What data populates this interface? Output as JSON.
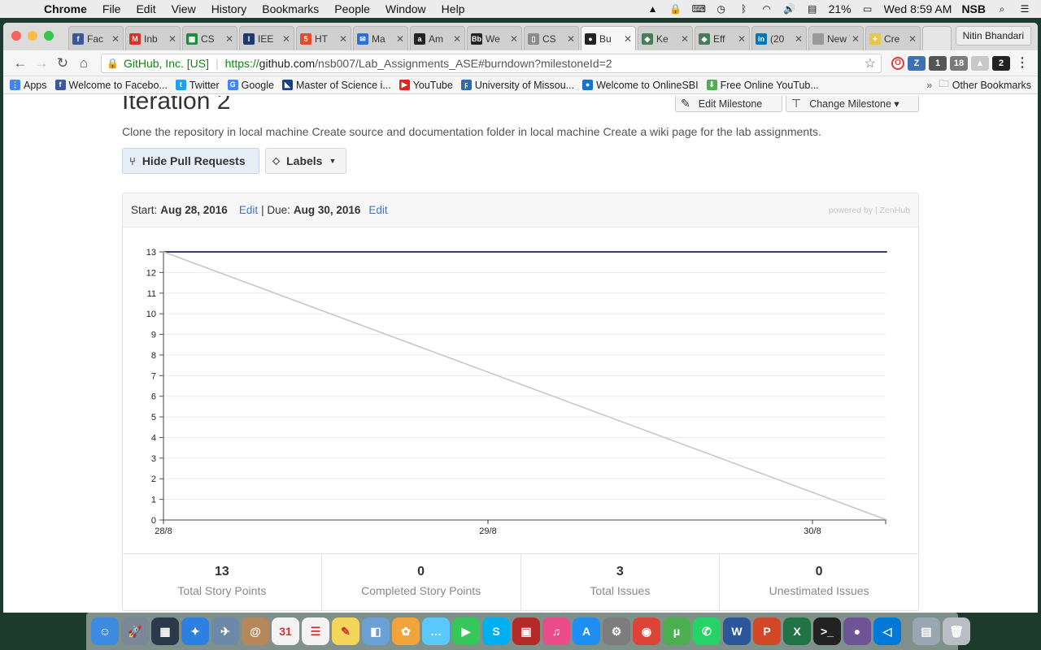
{
  "menubar": {
    "app_name": "Chrome",
    "items": [
      "File",
      "Edit",
      "View",
      "History",
      "Bookmarks",
      "People",
      "Window",
      "Help"
    ],
    "battery": "21%",
    "clock": "Wed 8:59 AM",
    "user": "NSB"
  },
  "browser": {
    "tabs": [
      {
        "label": "Fac",
        "icon": "facebook-icon",
        "color": "#3b5998",
        "glyph": "f"
      },
      {
        "label": "Inb",
        "icon": "gmail-icon",
        "color": "#d93025",
        "glyph": "M"
      },
      {
        "label": "CS",
        "icon": "sheets-icon",
        "color": "#1e8e3e",
        "glyph": "▦"
      },
      {
        "label": "IEE",
        "icon": "ieee-icon",
        "color": "#1f3b6e",
        "glyph": "I"
      },
      {
        "label": "HT",
        "icon": "html5-icon",
        "color": "#e34c26",
        "glyph": "5"
      },
      {
        "label": "Ma",
        "icon": "mail-icon",
        "color": "#2a6fdb",
        "glyph": "✉"
      },
      {
        "label": "Am",
        "icon": "amazon-icon",
        "color": "#222222",
        "glyph": "a"
      },
      {
        "label": "We",
        "icon": "blackboard-icon",
        "color": "#222222",
        "glyph": "Bb"
      },
      {
        "label": "CS",
        "icon": "document-icon",
        "color": "#8a8a8a",
        "glyph": "▯"
      },
      {
        "label": "Bu",
        "icon": "github-icon",
        "color": "#222222",
        "glyph": "●"
      },
      {
        "label": "Ke",
        "icon": "compass-icon",
        "color": "#4a7b5b",
        "glyph": "◈"
      },
      {
        "label": "Eff",
        "icon": "compass-icon",
        "color": "#4a7b5b",
        "glyph": "◈"
      },
      {
        "label": "(20",
        "icon": "linkedin-icon",
        "color": "#0077b5",
        "glyph": "in"
      },
      {
        "label": "New T",
        "icon": "newtab-icon",
        "color": "#9a9a9a",
        "glyph": ""
      },
      {
        "label": "Cre",
        "icon": "lightbulb-icon",
        "color": "#e8c64a",
        "glyph": "✦"
      }
    ],
    "active_tab_index": 9,
    "profile_name": "Nitin Bhandari",
    "security_label": "GitHub, Inc. [US]",
    "url_scheme": "https://",
    "url_host": "github.com",
    "url_path": "/nsb007/Lab_Assignments_ASE#burndown?milestoneId=2",
    "bookmarks": [
      {
        "label": "Apps",
        "icon": "apps-grid-icon",
        "color": "#4285f4",
        "glyph": "⋮"
      },
      {
        "label": "Welcome to Facebo...",
        "icon": "facebook-icon",
        "color": "#3b5998",
        "glyph": "f"
      },
      {
        "label": "Twitter",
        "icon": "twitter-icon",
        "color": "#1da1f2",
        "glyph": "t"
      },
      {
        "label": "Google",
        "icon": "google-icon",
        "color": "#4285f4",
        "glyph": "G"
      },
      {
        "label": "Master of Science i...",
        "icon": "flag-icon",
        "color": "#1a3d8f",
        "glyph": "◣"
      },
      {
        "label": "YouTube",
        "icon": "youtube-icon",
        "color": "#e62117",
        "glyph": "▶"
      },
      {
        "label": "University of Missou...",
        "icon": "university-icon",
        "color": "#2b6cb0",
        "glyph": "ϝ"
      },
      {
        "label": "Welcome to OnlineSBI",
        "icon": "sbi-icon",
        "color": "#1a73c8",
        "glyph": "●"
      },
      {
        "label": "Free Online YouTub...",
        "icon": "download-arrow-icon",
        "color": "#4caf50",
        "glyph": "⬇"
      }
    ],
    "other_bookmarks": "Other Bookmarks"
  },
  "milestone": {
    "title": "Iteration 2",
    "edit_label": "Edit Milestone",
    "change_label": "Change Milestone ▾",
    "description": "Clone the repository in local machine Create source and documentation folder in local machine Create a wiki page for the lab assignments.",
    "hide_pr_label": "Hide Pull Requests",
    "labels_label": "Labels"
  },
  "burndown": {
    "start_prefix": "Start:",
    "start_date": "Aug 28, 2016",
    "edit_link": "Edit",
    "due_prefix": "| Due:",
    "due_date": "Aug 30, 2016",
    "powered_by": "powered by | ZenHub",
    "stats": [
      {
        "value": "13",
        "label": "Total Story Points"
      },
      {
        "value": "0",
        "label": "Completed Story Points"
      },
      {
        "value": "3",
        "label": "Total Issues"
      },
      {
        "value": "0",
        "label": "Unestimated Issues"
      }
    ]
  },
  "chart_data": {
    "type": "line",
    "title": "",
    "xlabel": "",
    "ylabel": "",
    "x_ticks": [
      "28/8",
      "29/8",
      "30/8"
    ],
    "y_ticks": [
      0,
      1,
      2,
      3,
      4,
      5,
      6,
      7,
      8,
      9,
      10,
      11,
      12,
      13
    ],
    "ylim": [
      0,
      13
    ],
    "xlim": [
      "28/8",
      "31/8 (end of 30/8)"
    ],
    "grid": true,
    "series": [
      {
        "values": [
          [
            0,
            13
          ],
          [
            2.23,
            13
          ]
        ],
        "color": "#34406b"
      },
      {
        "values": [
          [
            0,
            13
          ],
          [
            2.23,
            0
          ]
        ],
        "color": "#c8c8c8"
      }
    ],
    "x_units": "days since 28/8"
  },
  "dock": {
    "apps": [
      {
        "icon": "finder-icon",
        "color": "#3d8be0",
        "glyph": "☺"
      },
      {
        "icon": "launchpad-icon",
        "color": "#7a8797",
        "glyph": "🚀"
      },
      {
        "icon": "mission-control-icon",
        "color": "#2b3a4a",
        "glyph": "▦"
      },
      {
        "icon": "safari-icon",
        "color": "#2d7fe0",
        "glyph": "✦"
      },
      {
        "icon": "image-capture-icon",
        "color": "#6c8aa8",
        "glyph": "✈"
      },
      {
        "icon": "contacts-icon",
        "color": "#b5875a",
        "glyph": "@"
      },
      {
        "icon": "calendar-icon",
        "color": "#f3f3f3",
        "glyph": "31"
      },
      {
        "icon": "reminders-icon",
        "color": "#f3f3f3",
        "glyph": "☰"
      },
      {
        "icon": "notes-icon",
        "color": "#f4d55c",
        "glyph": "✎"
      },
      {
        "icon": "preview-icon",
        "color": "#6aa0d4",
        "glyph": "◧"
      },
      {
        "icon": "photos-icon",
        "color": "#f1a33c",
        "glyph": "✿"
      },
      {
        "icon": "messages-icon",
        "color": "#5ac8fa",
        "glyph": "…"
      },
      {
        "icon": "facetime-icon",
        "color": "#35c759",
        "glyph": "▶"
      },
      {
        "icon": "skype-icon",
        "color": "#00aff0",
        "glyph": "S"
      },
      {
        "icon": "photo-booth-icon",
        "color": "#b22a2a",
        "glyph": "▣"
      },
      {
        "icon": "itunes-icon",
        "color": "#ea4c89",
        "glyph": "♫"
      },
      {
        "icon": "app-store-icon",
        "color": "#1d8ff2",
        "glyph": "A"
      },
      {
        "icon": "system-preferences-icon",
        "color": "#7d7d7d",
        "glyph": "⚙"
      },
      {
        "icon": "chrome-icon",
        "color": "#db4437",
        "glyph": "◉"
      },
      {
        "icon": "utorrent-icon",
        "color": "#4caf50",
        "glyph": "μ"
      },
      {
        "icon": "whatsapp-icon",
        "color": "#25d366",
        "glyph": "✆"
      },
      {
        "icon": "word-icon",
        "color": "#2b579a",
        "glyph": "W"
      },
      {
        "icon": "powerpoint-icon",
        "color": "#d24726",
        "glyph": "P"
      },
      {
        "icon": "excel-icon",
        "color": "#217346",
        "glyph": "X"
      },
      {
        "icon": "terminal-icon",
        "color": "#222222",
        "glyph": ">_"
      },
      {
        "icon": "github-desktop-icon",
        "color": "#6e5494",
        "glyph": "●"
      },
      {
        "icon": "vscode-icon",
        "color": "#0078d7",
        "glyph": "◁"
      },
      {
        "icon": "downloads-folder-icon",
        "color": "#9aa6b1",
        "glyph": "▤"
      },
      {
        "icon": "trash-icon",
        "color": "#b8bec4",
        "glyph": "🗑"
      }
    ]
  }
}
